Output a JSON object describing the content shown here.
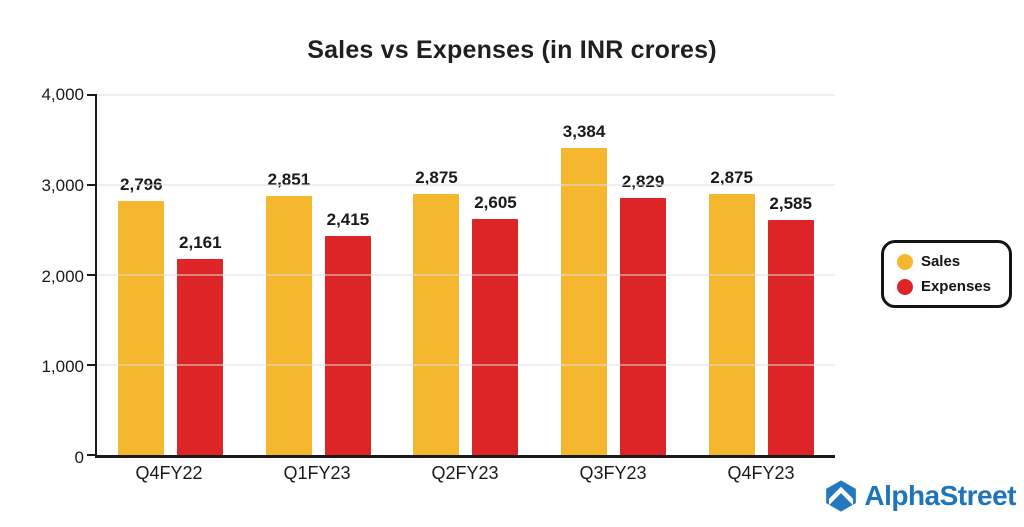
{
  "chart_data": {
    "type": "bar",
    "title": "Sales vs Expenses (in INR crores)",
    "categories": [
      "Q4FY22",
      "Q1FY23",
      "Q2FY23",
      "Q3FY23",
      "Q4FY23"
    ],
    "series": [
      {
        "name": "Sales",
        "color": "#F5B72E",
        "values": [
          2796,
          2851,
          2875,
          3384,
          2875
        ]
      },
      {
        "name": "Expenses",
        "color": "#DD2527",
        "values": [
          2161,
          2415,
          2605,
          2829,
          2585
        ]
      }
    ],
    "xlabel": "",
    "ylabel": "",
    "ylim": [
      0,
      4000
    ],
    "yticks": [
      "0",
      "1,000",
      "2,000",
      "3,000",
      "4,000"
    ],
    "grid": true,
    "legend_position": "right"
  },
  "legend": {
    "items": [
      {
        "label": "Sales",
        "color": "#F5B72E"
      },
      {
        "label": "Expenses",
        "color": "#DD2527"
      }
    ]
  },
  "branding": {
    "name": "AlphaStreet",
    "color": "#1E75BB"
  }
}
